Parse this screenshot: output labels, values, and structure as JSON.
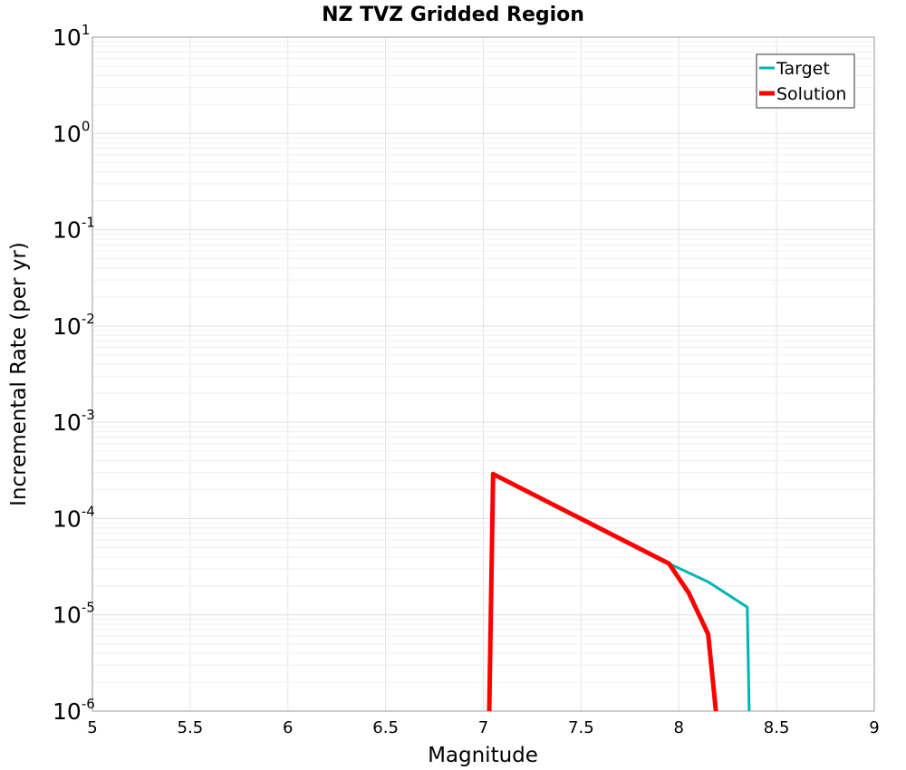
{
  "chart_data": {
    "type": "line",
    "title": "NZ TVZ Gridded Region",
    "xlabel": "Magnitude",
    "ylabel": "Incremental Rate (per yr)",
    "xlim": [
      5,
      9
    ],
    "ylim": [
      1e-06,
      10
    ],
    "yscale": "log",
    "grid": true,
    "legend_position": "top-right",
    "x_ticks": [
      "5",
      "5.5",
      "6",
      "6.5",
      "7",
      "7.5",
      "8",
      "8.5",
      "9"
    ],
    "y_ticks": [
      {
        "base": "10",
        "exp": "1"
      },
      {
        "base": "10",
        "exp": "0"
      },
      {
        "base": "10",
        "exp": "-1"
      },
      {
        "base": "10",
        "exp": "-2"
      },
      {
        "base": "10",
        "exp": "-3"
      },
      {
        "base": "10",
        "exp": "-4"
      },
      {
        "base": "10",
        "exp": "-5"
      },
      {
        "base": "10",
        "exp": "-6"
      }
    ],
    "series": [
      {
        "name": "Target",
        "color": "#00B4B4",
        "x": [
          7.05,
          7.95,
          8.15,
          8.35,
          8.36
        ],
        "y": [
          0.00029,
          3.4e-05,
          2.2e-05,
          1.2e-05,
          1e-06
        ]
      },
      {
        "name": "Solution",
        "color": "#FF0000",
        "x": [
          7.03,
          7.05,
          7.95,
          8.05,
          8.15,
          8.19
        ],
        "y": [
          1e-06,
          0.00029,
          3.4e-05,
          1.7e-05,
          6.3e-06,
          1e-06
        ]
      }
    ]
  }
}
